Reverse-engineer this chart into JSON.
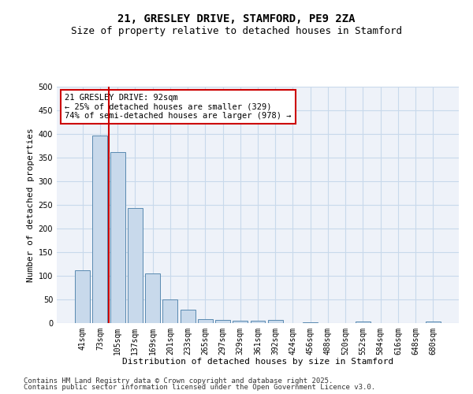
{
  "title_line1": "21, GRESLEY DRIVE, STAMFORD, PE9 2ZA",
  "title_line2": "Size of property relative to detached houses in Stamford",
  "xlabel": "Distribution of detached houses by size in Stamford",
  "ylabel": "Number of detached properties",
  "categories": [
    "41sqm",
    "73sqm",
    "105sqm",
    "137sqm",
    "169sqm",
    "201sqm",
    "233sqm",
    "265sqm",
    "297sqm",
    "329sqm",
    "361sqm",
    "392sqm",
    "424sqm",
    "456sqm",
    "488sqm",
    "520sqm",
    "552sqm",
    "584sqm",
    "616sqm",
    "648sqm",
    "680sqm"
  ],
  "values": [
    111,
    397,
    362,
    243,
    105,
    50,
    28,
    9,
    7,
    5,
    5,
    7,
    0,
    1,
    0,
    0,
    3,
    0,
    0,
    0,
    4
  ],
  "bar_color": "#c8d9eb",
  "bar_edge_color": "#5a8ab0",
  "red_line_x": 1.5,
  "annotation_text": "21 GRESLEY DRIVE: 92sqm\n← 25% of detached houses are smaller (329)\n74% of semi-detached houses are larger (978) →",
  "annotation_box_color": "#ffffff",
  "annotation_box_edge": "#cc0000",
  "red_line_color": "#cc0000",
  "ylim": [
    0,
    500
  ],
  "yticks": [
    0,
    50,
    100,
    150,
    200,
    250,
    300,
    350,
    400,
    450,
    500
  ],
  "grid_color": "#c8d9eb",
  "background_color": "#eef2f9",
  "footer_line1": "Contains HM Land Registry data © Crown copyright and database right 2025.",
  "footer_line2": "Contains public sector information licensed under the Open Government Licence v3.0.",
  "title_fontsize": 10,
  "subtitle_fontsize": 9,
  "xlabel_fontsize": 8,
  "ylabel_fontsize": 8,
  "tick_fontsize": 7,
  "footer_fontsize": 6.5,
  "annot_fontsize": 7.5
}
